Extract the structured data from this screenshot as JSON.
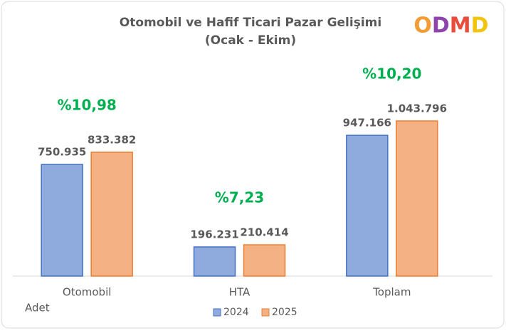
{
  "logo": "ODMD",
  "chart_data": {
    "type": "bar",
    "title": "Otomobil ve Hafif Ticari Pazar Gelişimi",
    "subtitle": "(Ocak - Ekim)",
    "unit_label": "Adet",
    "categories": [
      "Otomobil",
      "HTA",
      "Toplam"
    ],
    "series": [
      {
        "name": "2024",
        "color": "#4472c4",
        "fill": "#8faadc",
        "values": [
          750935,
          196231,
          947166
        ],
        "value_labels": [
          "750.935",
          "196.231",
          "947.166"
        ]
      },
      {
        "name": "2025",
        "color": "#ed7d31",
        "fill": "#f4b183",
        "values": [
          833382,
          210414,
          1043796
        ],
        "value_labels": [
          "833.382",
          "210.414",
          "1.043.796"
        ]
      }
    ],
    "annotations": [
      "%10,98",
      "%7,23",
      "%10,20"
    ],
    "legend": "bottom"
  }
}
